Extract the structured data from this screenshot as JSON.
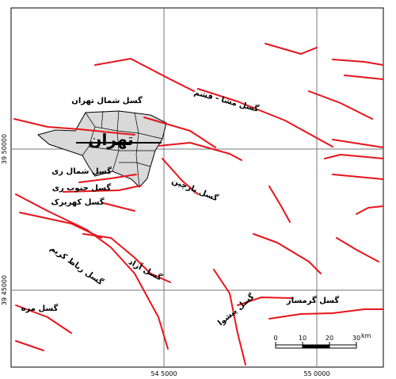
{
  "labels": {
    "north_tehran": "گسل شمال تهران",
    "tehran": "تهران",
    "mosha": "گسل مشا - فشم",
    "north_rey": "گسل شمال ری",
    "south_rey": "گسل جنوب ری",
    "kahrizak": "گسل کهریزک",
    "parchin": "گسل پارچین",
    "azad": "گسل آزاد",
    "robat_karim": "گسل رباط کریم",
    "garmsar": "گسل گرمسار",
    "pishva": "گسل پیشوا",
    "mareh": "گسل مره"
  },
  "coordinates": {
    "left": [
      "39 50000",
      "39 45000"
    ],
    "bottom": [
      "54 5000",
      "55 0000"
    ]
  },
  "scale_bar": {
    "ticks": [
      "0",
      "10",
      "20",
      "30"
    ],
    "unit": "km"
  }
}
